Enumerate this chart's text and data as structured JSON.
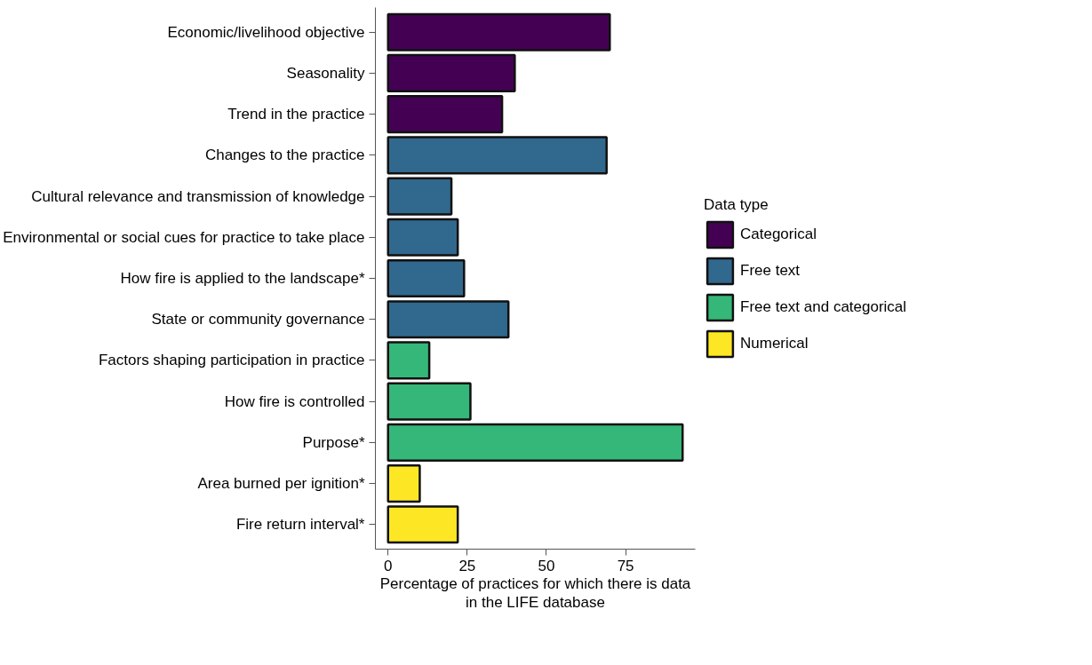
{
  "chart_data": {
    "type": "bar",
    "orientation": "horizontal",
    "xlabel": "Percentage of practices for which there is data\nin the LIFE database",
    "legend_title": "Data type",
    "legend": "right",
    "grid": false,
    "categories": [
      "Economic/livelihood objective",
      "Seasonality",
      "Trend in the practice",
      "Changes to the practice",
      "Cultural relevance and transmission of knowledge",
      "Environmental or social cues for practice to take place",
      "How fire is applied to the landscape*",
      "State or community governance",
      "Factors shaping participation in practice",
      "How fire is controlled",
      "Purpose*",
      "Area burned per ignition*",
      "Fire return interval*"
    ],
    "series": [
      {
        "name": "Categorical",
        "color": "#440154",
        "values": [
          70,
          40,
          36,
          null,
          null,
          null,
          null,
          null,
          null,
          null,
          null,
          null,
          null
        ]
      },
      {
        "name": "Free text",
        "color": "#31688e",
        "values": [
          null,
          null,
          null,
          69,
          20,
          22,
          24,
          38,
          null,
          null,
          null,
          null,
          null
        ]
      },
      {
        "name": "Free text and categorical",
        "color": "#35b779",
        "values": [
          null,
          null,
          null,
          null,
          null,
          null,
          null,
          null,
          13,
          26,
          93,
          null,
          null
        ]
      },
      {
        "name": "Numerical",
        "color": "#fde725",
        "values": [
          null,
          null,
          null,
          null,
          null,
          null,
          null,
          null,
          null,
          null,
          null,
          10,
          22
        ]
      }
    ],
    "xlim": [
      -4,
      97
    ],
    "xticks": [
      0,
      25,
      50,
      75
    ]
  }
}
